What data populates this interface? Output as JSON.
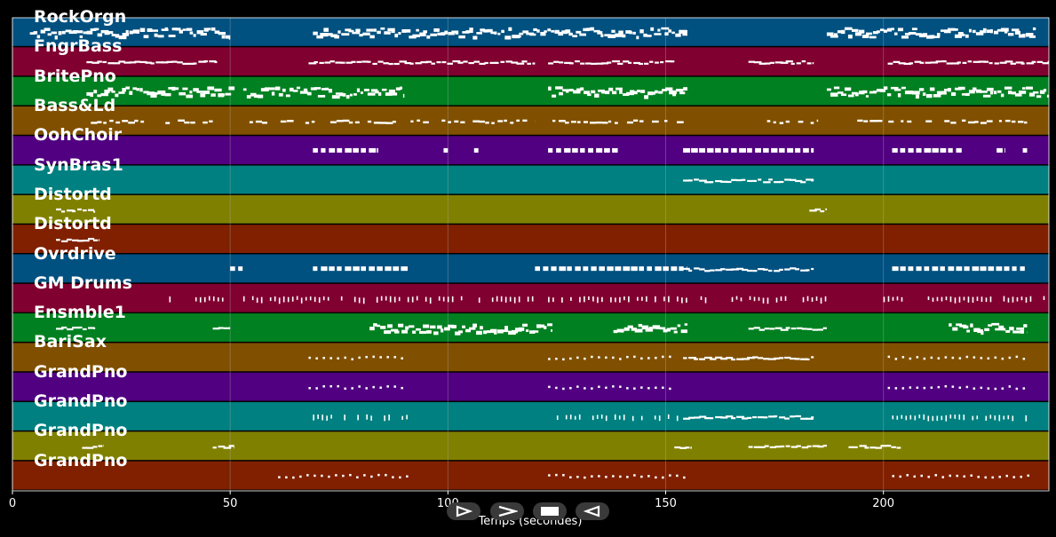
{
  "chart_data": {
    "type": "piano-roll",
    "title": "",
    "xlabel": "Temps (secondes)",
    "ylabel": "",
    "xlim": [
      0,
      238
    ],
    "xticks": [
      0,
      50,
      100,
      150,
      200
    ],
    "grid": true,
    "tracks": [
      {
        "name": "RockOrgn",
        "color": "#005080",
        "segments": [
          [
            4,
            50,
            "dense"
          ],
          [
            69,
            155,
            "dense"
          ],
          [
            187,
            235,
            "dense"
          ]
        ]
      },
      {
        "name": "FngrBass",
        "color": "#800030",
        "segments": [
          [
            17,
            47,
            "line"
          ],
          [
            68,
            120,
            "line"
          ],
          [
            123,
            152,
            "line"
          ],
          [
            169,
            184,
            "line"
          ],
          [
            201,
            238,
            "line"
          ]
        ]
      },
      {
        "name": "BritePno",
        "color": "#008020",
        "segments": [
          [
            17,
            51,
            "dense"
          ],
          [
            53,
            90,
            "dense"
          ],
          [
            123,
            155,
            "dense"
          ],
          [
            187,
            238,
            "dense"
          ]
        ]
      },
      {
        "name": "Bass&Ld",
        "color": "#805000",
        "segments": [
          [
            18,
            46,
            "sparse"
          ],
          [
            53,
            90,
            "sparse"
          ],
          [
            90,
            120,
            "sparse"
          ],
          [
            124,
            155,
            "sparse"
          ],
          [
            169,
            185,
            "sparse"
          ],
          [
            194,
            218,
            "sparse"
          ],
          [
            218,
            233,
            "sparse"
          ]
        ]
      },
      {
        "name": "OohChoir",
        "color": "#500080",
        "segments": [
          [
            69,
            84,
            "blocks"
          ],
          [
            99,
            100,
            "blocks"
          ],
          [
            106,
            107,
            "blocks"
          ],
          [
            123,
            139,
            "blocks"
          ],
          [
            154,
            184,
            "blocks"
          ],
          [
            202,
            218,
            "blocks"
          ],
          [
            226,
            228,
            "blocks"
          ],
          [
            232,
            233,
            "blocks"
          ]
        ]
      },
      {
        "name": "SynBras1",
        "color": "#008080",
        "segments": [
          [
            154,
            184,
            "line"
          ]
        ]
      },
      {
        "name": "Distortd",
        "color": "#808000",
        "segments": [
          [
            10,
            19,
            "line"
          ],
          [
            183,
            187,
            "line"
          ]
        ]
      },
      {
        "name": "Distortd",
        "color": "#802000",
        "segments": [
          [
            10,
            20,
            "line"
          ]
        ]
      },
      {
        "name": "Ovrdrive",
        "color": "#005080",
        "segments": [
          [
            50,
            53,
            "blocks"
          ],
          [
            69,
            91,
            "blocks"
          ],
          [
            120,
            155,
            "blocks"
          ],
          [
            154,
            184,
            "line"
          ],
          [
            202,
            233,
            "blocks"
          ]
        ]
      },
      {
        "name": "GM Drums",
        "color": "#800030",
        "segments": [
          [
            36,
            37,
            "ticks"
          ],
          [
            42,
            49,
            "ticks"
          ],
          [
            53,
            120,
            "ticks"
          ],
          [
            123,
            155,
            "ticks"
          ],
          [
            158,
            187,
            "ticks"
          ],
          [
            200,
            238,
            "ticks"
          ]
        ]
      },
      {
        "name": "Ensmble1",
        "color": "#008020",
        "segments": [
          [
            10,
            19,
            "line"
          ],
          [
            46,
            50,
            "line"
          ],
          [
            82,
            124,
            "dense"
          ],
          [
            138,
            155,
            "dense"
          ],
          [
            169,
            187,
            "line"
          ],
          [
            215,
            233,
            "dense"
          ]
        ]
      },
      {
        "name": "BariSax",
        "color": "#805000",
        "segments": [
          [
            68,
            90,
            "dots"
          ],
          [
            123,
            152,
            "dots"
          ],
          [
            154,
            184,
            "line"
          ],
          [
            201,
            232,
            "dots"
          ]
        ]
      },
      {
        "name": "GrandPno",
        "color": "#500080",
        "segments": [
          [
            68,
            90,
            "dots"
          ],
          [
            123,
            152,
            "dots"
          ],
          [
            201,
            232,
            "dots"
          ]
        ]
      },
      {
        "name": "GrandPno",
        "color": "#008080",
        "segments": [
          [
            69,
            91,
            "ticks"
          ],
          [
            125,
            154,
            "ticks"
          ],
          [
            154,
            184,
            "line"
          ],
          [
            202,
            233,
            "ticks"
          ]
        ]
      },
      {
        "name": "GrandPno",
        "color": "#808000",
        "segments": [
          [
            16,
            21,
            "line"
          ],
          [
            46,
            51,
            "line"
          ],
          [
            152,
            156,
            "line"
          ],
          [
            169,
            187,
            "line"
          ],
          [
            192,
            204,
            "line"
          ]
        ]
      },
      {
        "name": "GrandPno",
        "color": "#802000",
        "segments": [
          [
            61,
            91,
            "dots"
          ],
          [
            123,
            155,
            "dots"
          ],
          [
            202,
            233,
            "dots"
          ]
        ]
      }
    ]
  },
  "controls": [
    {
      "name": "play",
      "icon": "play-icon"
    },
    {
      "name": "forward",
      "icon": "fast-forward-icon"
    },
    {
      "name": "stop",
      "icon": "stop-icon"
    },
    {
      "name": "rewind",
      "icon": "rewind-icon"
    }
  ]
}
